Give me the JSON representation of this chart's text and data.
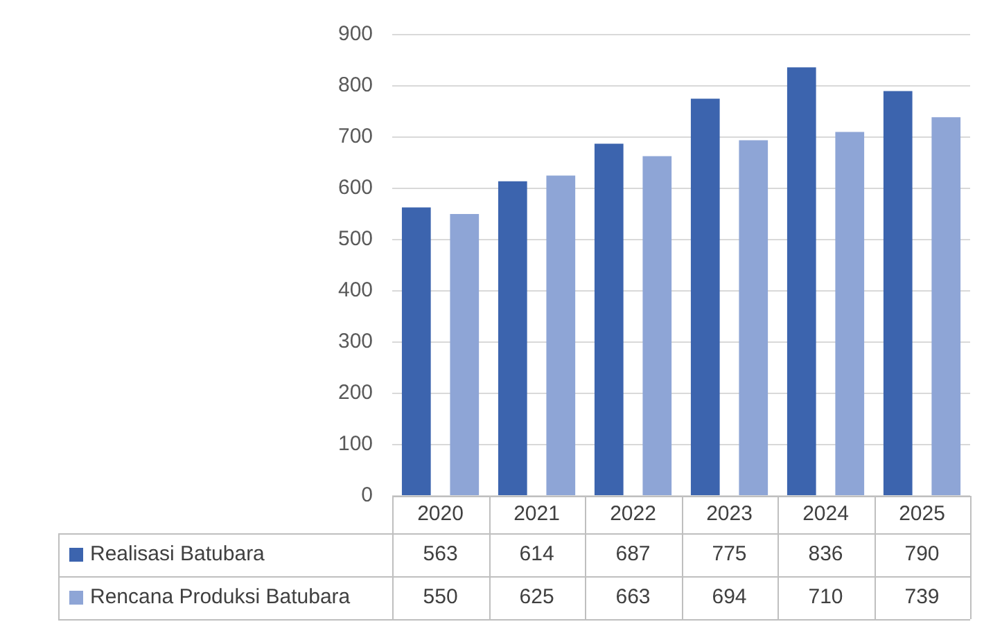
{
  "chart_data": {
    "type": "bar",
    "categories": [
      "2020",
      "2021",
      "2022",
      "2023",
      "2024",
      "2025"
    ],
    "series": [
      {
        "name": "Realisasi Batubara",
        "color": "#3c64ae",
        "values": [
          563,
          614,
          687,
          775,
          836,
          790
        ]
      },
      {
        "name": "Rencana Produksi Batubara",
        "color": "#8ea5d6",
        "values": [
          550,
          625,
          663,
          694,
          710,
          739
        ]
      }
    ],
    "ylim": [
      0,
      900
    ],
    "yticks": [
      0,
      100,
      200,
      300,
      400,
      500,
      600,
      700,
      800,
      900
    ],
    "grid": "y",
    "legend": "bottom left",
    "data_labels": true
  }
}
